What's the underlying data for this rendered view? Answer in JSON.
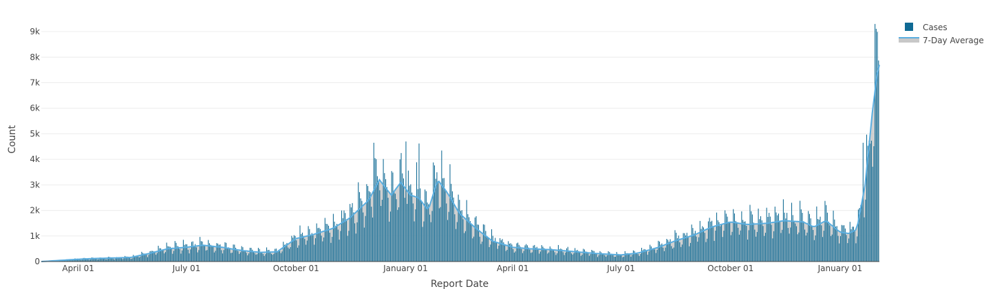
{
  "chart_data": {
    "type": "bar",
    "xlabel": "Report Date",
    "ylabel": "Count",
    "x_tick_labels": [
      "April 01",
      "July 01",
      "October 01",
      "January 01",
      "April 01",
      "July 01",
      "October 01",
      "January 01"
    ],
    "y_tick_labels": [
      "0",
      "1k",
      "2k",
      "3k",
      "4k",
      "5k",
      "6k",
      "7k",
      "8k",
      "9k"
    ],
    "ylim": [
      0,
      9700
    ],
    "grid": "horizontal",
    "legend_position": "top-right",
    "series": [
      {
        "name": "Cases",
        "type": "bar",
        "color": "#0f6a94"
      },
      {
        "name": "7-Day Average",
        "type": "area-line",
        "line_color": "#5aaee0",
        "fill_color": "#c8c8c8"
      }
    ],
    "weekly_average_points": [
      [
        "2020-03-01",
        0
      ],
      [
        "2020-03-15",
        40
      ],
      [
        "2020-04-01",
        90
      ],
      [
        "2020-04-15",
        120
      ],
      [
        "2020-05-01",
        140
      ],
      [
        "2020-05-15",
        160
      ],
      [
        "2020-06-01",
        330
      ],
      [
        "2020-06-15",
        500
      ],
      [
        "2020-07-01",
        560
      ],
      [
        "2020-07-15",
        640
      ],
      [
        "2020-08-01",
        550
      ],
      [
        "2020-08-15",
        440
      ],
      [
        "2020-09-01",
        360
      ],
      [
        "2020-09-15",
        380
      ],
      [
        "2020-10-01",
        900
      ],
      [
        "2020-10-15",
        1050
      ],
      [
        "2020-11-01",
        1300
      ],
      [
        "2020-11-15",
        1700
      ],
      [
        "2020-12-01",
        2400
      ],
      [
        "2020-12-10",
        3200
      ],
      [
        "2020-12-20",
        2600
      ],
      [
        "2020-12-28",
        3100
      ],
      [
        "2021-01-05",
        2600
      ],
      [
        "2021-01-12",
        2500
      ],
      [
        "2021-01-20",
        2000
      ],
      [
        "2021-01-28",
        3200
      ],
      [
        "2021-02-05",
        2700
      ],
      [
        "2021-02-15",
        1900
      ],
      [
        "2021-03-01",
        1300
      ],
      [
        "2021-03-15",
        800
      ],
      [
        "2021-04-01",
        560
      ],
      [
        "2021-04-15",
        500
      ],
      [
        "2021-05-01",
        470
      ],
      [
        "2021-05-15",
        420
      ],
      [
        "2021-06-01",
        350
      ],
      [
        "2021-06-15",
        300
      ],
      [
        "2021-07-01",
        260
      ],
      [
        "2021-07-15",
        330
      ],
      [
        "2021-08-01",
        550
      ],
      [
        "2021-08-15",
        800
      ],
      [
        "2021-09-01",
        1050
      ],
      [
        "2021-09-15",
        1350
      ],
      [
        "2021-10-01",
        1550
      ],
      [
        "2021-10-15",
        1450
      ],
      [
        "2021-11-01",
        1500
      ],
      [
        "2021-11-15",
        1600
      ],
      [
        "2021-12-01",
        1550
      ],
      [
        "2021-12-10",
        1350
      ],
      [
        "2021-12-20",
        1600
      ],
      [
        "2022-01-01",
        1150
      ],
      [
        "2022-01-08",
        1100
      ],
      [
        "2022-01-15",
        1250
      ],
      [
        "2022-01-22",
        3000
      ],
      [
        "2022-01-28",
        5800
      ],
      [
        "2022-02-02",
        7700
      ]
    ],
    "notable_peaks": [
      [
        "2020-12-05",
        4650
      ],
      [
        "2021-01-01",
        4700
      ],
      [
        "2021-01-12",
        4620
      ],
      [
        "2022-01-20",
        4650
      ],
      [
        "2022-01-30",
        9300
      ]
    ]
  }
}
